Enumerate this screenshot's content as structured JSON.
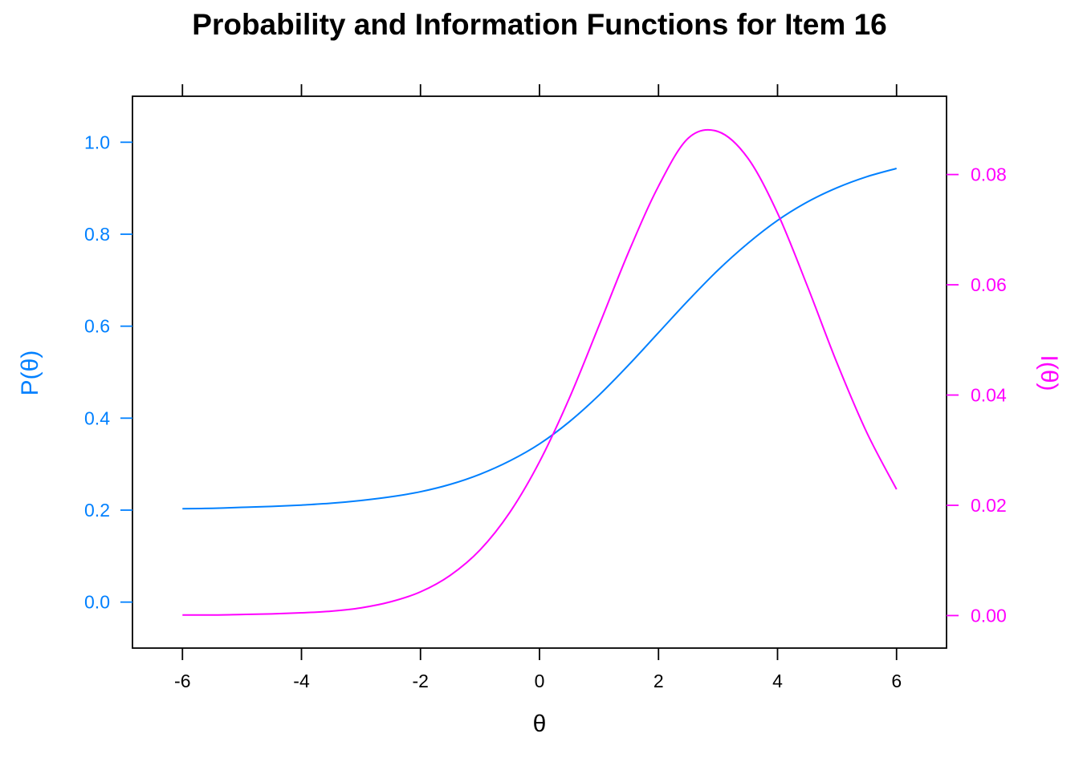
{
  "chart_data": {
    "type": "line",
    "title": "Probability and Information Functions for Item 16",
    "xlabel": "θ",
    "ylabel_left": "P(θ)",
    "ylabel_right": "I(θ)",
    "xlim": [
      -6.84,
      6.84
    ],
    "ylim_left": [
      -0.1,
      1.1
    ],
    "ylim_right": [
      -0.0059,
      0.0942
    ],
    "x_ticks": [
      -6,
      -4,
      -2,
      0,
      2,
      4,
      6
    ],
    "x_tick_labels": [
      "-6",
      "-4",
      "-2",
      "0",
      "2",
      "4",
      "6"
    ],
    "left_ticks": [
      0.0,
      0.2,
      0.4,
      0.6,
      0.8,
      1.0
    ],
    "left_tick_labels": [
      "0.0",
      "0.2",
      "0.4",
      "0.6",
      "0.8",
      "1.0"
    ],
    "right_ticks": [
      0.0,
      0.02,
      0.04,
      0.06,
      0.08
    ],
    "right_tick_labels": [
      "0.00",
      "0.02",
      "0.04",
      "0.06",
      "0.08"
    ],
    "colors": {
      "probability": "#0080ff",
      "information": "#ff00ff",
      "axis": "#000000"
    },
    "grid": false,
    "legend": "none",
    "x": [
      -6,
      -5.5,
      -5,
      -4.5,
      -4,
      -3.5,
      -3,
      -2.5,
      -2,
      -1.5,
      -1,
      -0.5,
      0,
      0.5,
      1,
      1.5,
      2,
      2.5,
      3,
      3.5,
      4,
      4.5,
      5,
      5.5,
      6
    ],
    "series": [
      {
        "axis": "left",
        "values": [
          0.203,
          0.204,
          0.206,
          0.208,
          0.211,
          0.215,
          0.221,
          0.229,
          0.24,
          0.256,
          0.278,
          0.307,
          0.344,
          0.392,
          0.45,
          0.516,
          0.586,
          0.656,
          0.722,
          0.78,
          0.83,
          0.87,
          0.901,
          0.925,
          0.943
        ]
      },
      {
        "axis": "right",
        "values": [
          0.0001,
          0.0001,
          0.0002,
          0.0003,
          0.0005,
          0.0008,
          0.0014,
          0.0025,
          0.0043,
          0.0073,
          0.0119,
          0.0187,
          0.0279,
          0.0394,
          0.0526,
          0.066,
          0.0779,
          0.0866,
          0.0878,
          0.083,
          0.073,
          0.0598,
          0.0458,
          0.0332,
          0.0229
        ]
      }
    ]
  }
}
